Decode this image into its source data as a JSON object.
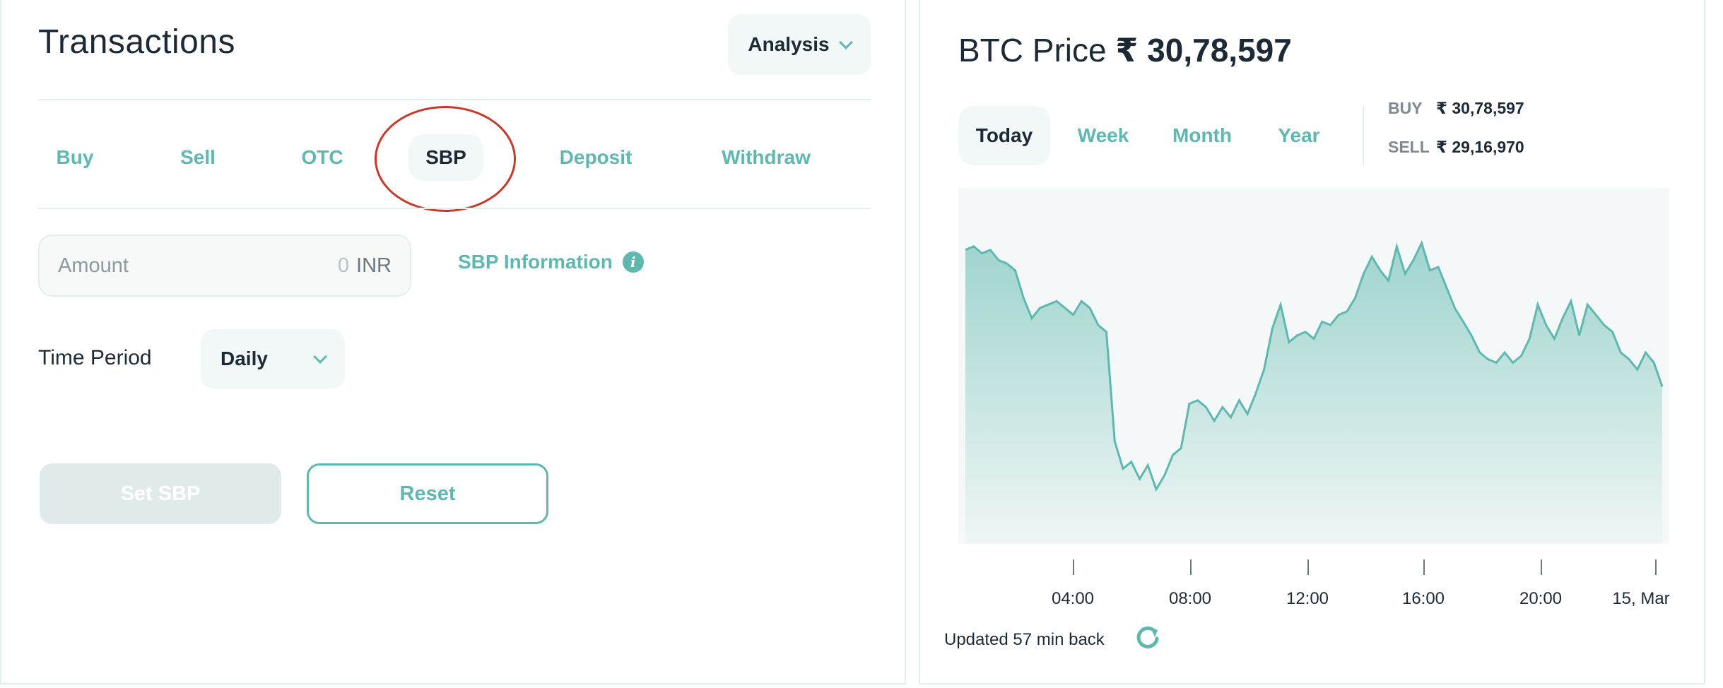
{
  "transactions": {
    "title": "Transactions",
    "analysis_label": "Analysis",
    "tabs": [
      {
        "label": "Buy"
      },
      {
        "label": "Sell"
      },
      {
        "label": "OTC"
      },
      {
        "label": "SBP",
        "active": true
      },
      {
        "label": "Deposit"
      },
      {
        "label": "Withdraw"
      }
    ],
    "amount": {
      "placeholder": "Amount",
      "value": "0",
      "unit": "INR"
    },
    "sbp_info_label": "SBP Information",
    "time_period": {
      "label": "Time Period",
      "selected": "Daily"
    },
    "set_button": "Set SBP",
    "reset_button": "Reset"
  },
  "price": {
    "title_prefix": "BTC Price",
    "currency": "₹",
    "value": "30,78,597",
    "range_tabs": [
      {
        "label": "Today",
        "active": true
      },
      {
        "label": "Week"
      },
      {
        "label": "Month"
      },
      {
        "label": "Year"
      }
    ],
    "buy_label": "BUY",
    "buy_value": "₹ 30,78,597",
    "sell_label": "SELL",
    "sell_value": "₹ 29,16,970",
    "updated_text": "Updated 57 min back"
  },
  "chart_data": {
    "type": "area",
    "x_tick_labels": [
      "04:00",
      "08:00",
      "12:00",
      "16:00",
      "20:00",
      "15, Mar"
    ],
    "values": [
      0.86,
      0.87,
      0.85,
      0.86,
      0.83,
      0.82,
      0.8,
      0.72,
      0.66,
      0.69,
      0.7,
      0.71,
      0.69,
      0.67,
      0.71,
      0.69,
      0.64,
      0.62,
      0.3,
      0.22,
      0.24,
      0.19,
      0.23,
      0.16,
      0.2,
      0.26,
      0.28,
      0.41,
      0.42,
      0.4,
      0.36,
      0.4,
      0.37,
      0.42,
      0.38,
      0.44,
      0.51,
      0.63,
      0.7,
      0.59,
      0.61,
      0.62,
      0.6,
      0.65,
      0.64,
      0.67,
      0.68,
      0.72,
      0.79,
      0.84,
      0.8,
      0.77,
      0.87,
      0.79,
      0.83,
      0.88,
      0.8,
      0.81,
      0.75,
      0.69,
      0.65,
      0.61,
      0.56,
      0.54,
      0.53,
      0.56,
      0.53,
      0.55,
      0.6,
      0.7,
      0.64,
      0.6,
      0.66,
      0.71,
      0.61,
      0.7,
      0.67,
      0.64,
      0.62,
      0.56,
      0.54,
      0.51,
      0.56,
      0.53,
      0.46
    ],
    "colors": {
      "line": "#5fb8b0",
      "fill_top": "#9fd4ce",
      "fill_bottom": "#eef6f5"
    }
  },
  "colors": {
    "accent": "#5fb8b0",
    "highlight_circle": "#c8382a"
  }
}
